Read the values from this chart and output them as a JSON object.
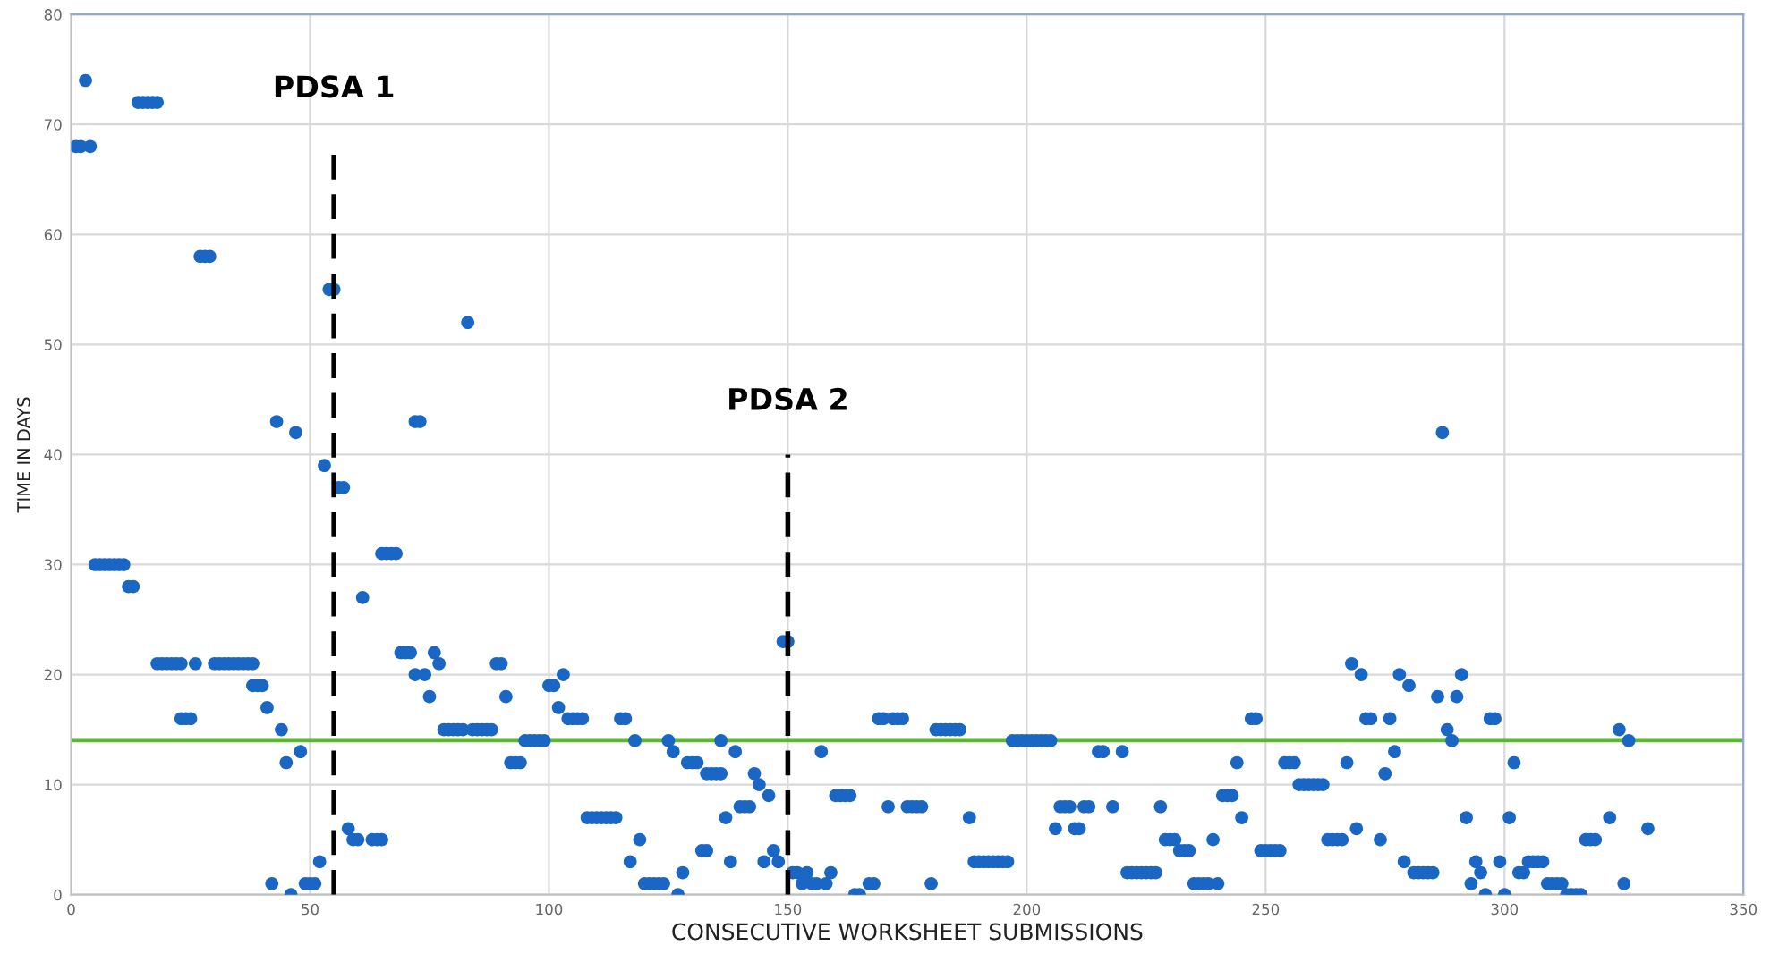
{
  "chart_data": {
    "type": "scatter",
    "xlabel": "CONSECUTIVE WORKSHEET SUBMISSIONS",
    "ylabel": "TIME IN DAYS",
    "xlim": [
      0,
      350
    ],
    "ylim": [
      0,
      80
    ],
    "xticks": [
      0,
      50,
      100,
      150,
      200,
      250,
      300,
      350
    ],
    "yticks": [
      0,
      10,
      20,
      30,
      40,
      50,
      60,
      70,
      80
    ],
    "grid": true,
    "marker": "circle",
    "series": [
      {
        "color": "#1a66c4",
        "x": [
          1,
          2,
          3,
          4,
          5,
          6,
          7,
          8,
          9,
          10,
          11,
          12,
          13,
          14,
          15,
          16,
          17,
          18,
          18,
          19,
          20,
          21,
          22,
          23,
          23,
          24,
          25,
          26,
          27,
          28,
          29,
          30,
          31,
          32,
          33,
          34,
          35,
          36,
          37,
          38,
          38,
          39,
          40,
          41,
          42,
          43,
          44,
          45,
          46,
          47,
          48,
          49,
          50,
          51,
          52,
          53,
          54,
          55,
          56,
          57,
          58,
          59,
          60,
          61,
          63,
          64,
          65,
          65,
          66,
          67,
          68,
          69,
          70,
          71,
          72,
          72,
          73,
          74,
          75,
          76,
          77,
          78,
          79,
          80,
          81,
          82,
          83,
          84,
          85,
          86,
          87,
          88,
          89,
          90,
          91,
          92,
          93,
          94,
          95,
          96,
          97,
          98,
          99,
          100,
          101,
          102,
          103,
          104,
          105,
          106,
          107,
          108,
          109,
          110,
          111,
          112,
          113,
          114,
          115,
          116,
          117,
          118,
          119,
          120,
          121,
          122,
          123,
          124,
          125,
          126,
          127,
          128,
          129,
          130,
          131,
          132,
          133,
          133,
          134,
          135,
          136,
          136,
          137,
          138,
          139,
          140,
          141,
          142,
          143,
          144,
          145,
          146,
          147,
          148,
          149,
          150,
          151,
          152,
          153,
          154,
          155,
          156,
          157,
          158,
          159,
          160,
          161,
          162,
          163,
          164,
          165,
          167,
          168,
          169,
          170,
          171,
          172,
          173,
          174,
          175,
          176,
          177,
          178,
          180,
          181,
          182,
          183,
          184,
          185,
          186,
          188,
          189,
          190,
          191,
          192,
          193,
          194,
          195,
          196,
          197,
          198,
          199,
          200,
          201,
          202,
          203,
          204,
          205,
          206,
          207,
          208,
          209,
          210,
          211,
          212,
          213,
          215,
          216,
          218,
          220,
          221,
          222,
          223,
          224,
          225,
          226,
          227,
          228,
          229,
          230,
          231,
          232,
          233,
          234,
          235,
          236,
          237,
          238,
          239,
          240,
          241,
          242,
          243,
          244,
          245,
          247,
          248,
          249,
          250,
          251,
          252,
          253,
          254,
          255,
          256,
          257,
          258,
          259,
          260,
          261,
          262,
          263,
          264,
          265,
          266,
          267,
          268,
          269,
          270,
          271,
          272,
          274,
          275,
          276,
          277,
          278,
          279,
          280,
          281,
          282,
          283,
          284,
          285,
          286,
          287,
          288,
          289,
          290,
          291,
          292,
          293,
          294,
          295,
          296,
          297,
          298,
          299,
          300,
          301,
          302,
          303,
          304,
          305,
          306,
          307,
          308,
          309,
          310,
          311,
          312,
          313,
          314,
          315,
          316,
          317,
          318,
          319,
          322,
          324,
          325,
          326,
          330
        ],
        "values": [
          68,
          68,
          74,
          68,
          30,
          30,
          30,
          30,
          30,
          30,
          30,
          28,
          28,
          72,
          72,
          72,
          72,
          72,
          21,
          21,
          21,
          21,
          21,
          21,
          16,
          16,
          16,
          21,
          58,
          58,
          58,
          21,
          21,
          21,
          21,
          21,
          21,
          21,
          21,
          21,
          19,
          19,
          19,
          17,
          1,
          43,
          15,
          12,
          0,
          42,
          13,
          1,
          1,
          1,
          3,
          39,
          55,
          55,
          37,
          37,
          6,
          5,
          5,
          27,
          5,
          5,
          5,
          31,
          31,
          31,
          31,
          22,
          22,
          22,
          20,
          43,
          43,
          20,
          18,
          22,
          21,
          15,
          15,
          15,
          15,
          15,
          52,
          15,
          15,
          15,
          15,
          15,
          21,
          21,
          18,
          12,
          12,
          12,
          14,
          14,
          14,
          14,
          14,
          19,
          19,
          17,
          20,
          16,
          16,
          16,
          16,
          7,
          7,
          7,
          7,
          7,
          7,
          7,
          16,
          16,
          3,
          14,
          5,
          1,
          1,
          1,
          1,
          1,
          14,
          13,
          0,
          2,
          12,
          12,
          12,
          4,
          4,
          11,
          11,
          11,
          11,
          14,
          7,
          3,
          13,
          8,
          8,
          8,
          11,
          10,
          3,
          9,
          4,
          3,
          23,
          23,
          2,
          2,
          1,
          2,
          1,
          1,
          13,
          1,
          2,
          9,
          9,
          9,
          9,
          0,
          0,
          1,
          1,
          16,
          16,
          8,
          16,
          16,
          16,
          8,
          8,
          8,
          8,
          1,
          15,
          15,
          15,
          15,
          15,
          15,
          7,
          3,
          3,
          3,
          3,
          3,
          3,
          3,
          3,
          14,
          14,
          14,
          14,
          14,
          14,
          14,
          14,
          14,
          6,
          8,
          8,
          8,
          6,
          6,
          8,
          8,
          13,
          13,
          8,
          13,
          2,
          2,
          2,
          2,
          2,
          2,
          2,
          8,
          5,
          5,
          5,
          4,
          4,
          4,
          1,
          1,
          1,
          1,
          5,
          1,
          9,
          9,
          9,
          12,
          7,
          16,
          16,
          4,
          4,
          4,
          4,
          4,
          12,
          12,
          12,
          10,
          10,
          10,
          10,
          10,
          10,
          5,
          5,
          5,
          5,
          12,
          21,
          6,
          20,
          16,
          16,
          5,
          11,
          16,
          13,
          20,
          3,
          19,
          2,
          2,
          2,
          2,
          2,
          18,
          42,
          15,
          14,
          18,
          20,
          7,
          1,
          3,
          2,
          0,
          16,
          16,
          3,
          0,
          7,
          12,
          2,
          2,
          3,
          3,
          3,
          3,
          1,
          1,
          1,
          1,
          0,
          0,
          0,
          0,
          5,
          5,
          5,
          7,
          15,
          1,
          14,
          6
        ]
      }
    ],
    "ref_lines": [
      {
        "axis": "x",
        "value": 55,
        "label": "PDSA 1",
        "color": "#000000",
        "line_style": "dashed"
      },
      {
        "axis": "x",
        "value": 150,
        "label": "PDSA 2",
        "color": "#000000",
        "line_style": "dashed"
      },
      {
        "axis": "y",
        "value": 14,
        "color": "#5cb82e",
        "line_style": "solid"
      }
    ]
  }
}
